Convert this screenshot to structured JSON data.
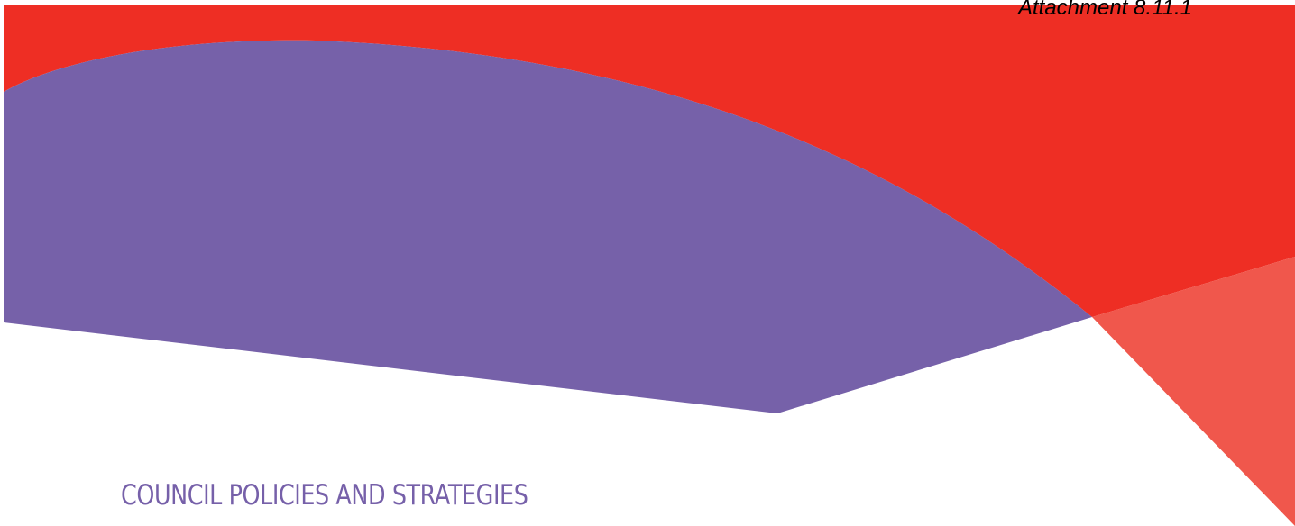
{
  "document": {
    "attachment_label": "Attachment 8.11.1",
    "section_heading": "COUNCIL POLICIES AND STRATEGIES"
  },
  "colors": {
    "red": "#ee2e24",
    "purple": "#7661a9",
    "coral": "#f0574c",
    "heading": "#7660a9"
  }
}
